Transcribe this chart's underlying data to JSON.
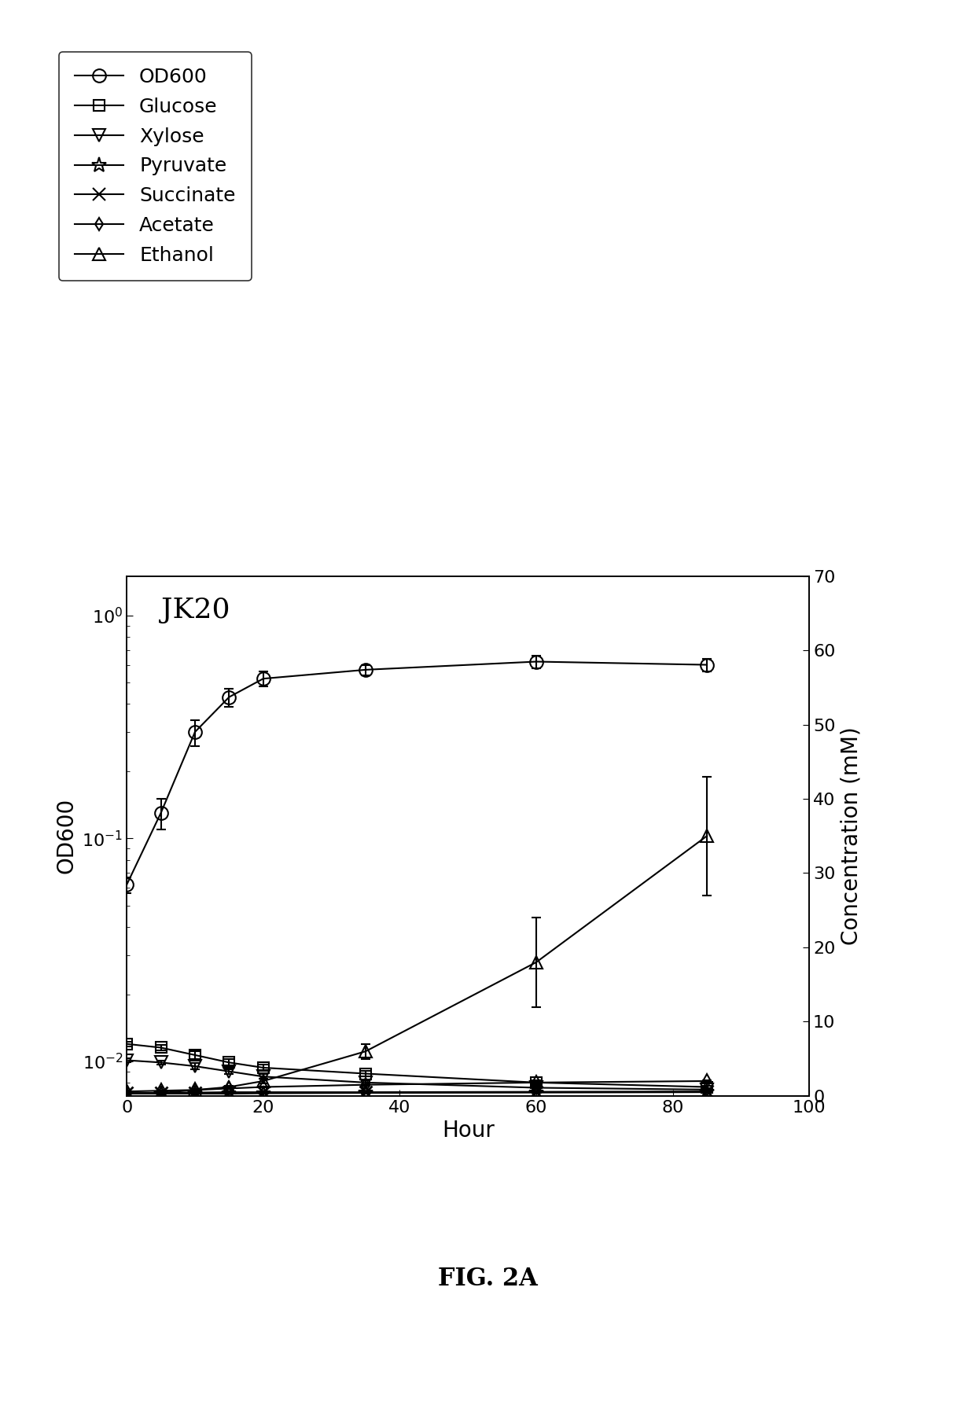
{
  "title": "JK20",
  "xlabel": "Hour",
  "ylabel_left": "OD600",
  "ylabel_right": "Concentration (mM)",
  "fig_label": "FIG. 2A",
  "xlim": [
    0,
    100
  ],
  "ylim_right": [
    0,
    70
  ],
  "right_yticks": [
    0,
    10,
    20,
    30,
    40,
    50,
    60,
    70
  ],
  "xticks": [
    0,
    20,
    40,
    60,
    80,
    100
  ],
  "OD600_x": [
    0,
    5,
    10,
    15,
    20,
    35,
    60,
    85
  ],
  "OD600_y": [
    0.062,
    0.13,
    0.3,
    0.43,
    0.52,
    0.57,
    0.62,
    0.6
  ],
  "OD600_yerr": [
    0.005,
    0.02,
    0.04,
    0.04,
    0.04,
    0.03,
    0.04,
    0.04
  ],
  "Glucose_x": [
    0,
    5,
    10,
    15,
    20,
    35,
    60,
    85
  ],
  "Glucose_y": [
    7.0,
    6.5,
    5.5,
    4.5,
    3.8,
    3.0,
    1.8,
    1.2
  ],
  "Glucose_yerr": [
    0.3,
    0.4,
    0.5,
    0.5,
    0.4,
    0.4,
    0.3,
    0.2
  ],
  "Xylose_x": [
    0,
    5,
    10,
    15,
    20,
    35,
    60,
    85
  ],
  "Xylose_y": [
    4.8,
    4.5,
    4.0,
    3.3,
    2.6,
    1.8,
    1.1,
    0.85
  ],
  "Xylose_yerr": [
    0.3,
    0.3,
    0.4,
    0.3,
    0.3,
    0.3,
    0.2,
    0.2
  ],
  "Ethanol_x": [
    0,
    5,
    10,
    15,
    20,
    35,
    60,
    85
  ],
  "Ethanol_y": [
    0.3,
    0.4,
    0.8,
    1.2,
    2.0,
    6.0,
    18.0,
    35.0
  ],
  "Ethanol_yerr": [
    0.1,
    0.1,
    0.1,
    0.2,
    0.3,
    1.0,
    6.0,
    8.0
  ],
  "Pyruvate_x": [
    0,
    5,
    10,
    15,
    20,
    35,
    60,
    85
  ],
  "Pyruvate_y": [
    0.3,
    0.3,
    0.3,
    0.3,
    0.35,
    0.4,
    0.45,
    0.5
  ],
  "Pyruvate_yerr": [
    0.05,
    0.05,
    0.05,
    0.05,
    0.05,
    0.05,
    0.05,
    0.05
  ],
  "Succinate_x": [
    0,
    5,
    10,
    15,
    20,
    35,
    60,
    85
  ],
  "Succinate_y": [
    0.4,
    0.4,
    0.45,
    0.5,
    0.5,
    0.5,
    0.55,
    0.6
  ],
  "Succinate_yerr": [
    0.05,
    0.05,
    0.05,
    0.05,
    0.05,
    0.05,
    0.05,
    0.05
  ],
  "Acetate_x": [
    0,
    5,
    10,
    15,
    20,
    35,
    60,
    85
  ],
  "Acetate_y": [
    0.6,
    0.7,
    0.8,
    1.0,
    1.2,
    1.5,
    1.8,
    2.0
  ],
  "Acetate_yerr": [
    0.05,
    0.05,
    0.05,
    0.05,
    0.08,
    0.1,
    0.1,
    0.1
  ],
  "legend_entries": [
    "OD600",
    "Glucose",
    "Xylose",
    "Pyruvate",
    "Succinate",
    "Acetate",
    "Ethanol"
  ],
  "legend_markers": [
    "o",
    "s",
    "v",
    "*",
    "x",
    "d",
    "^"
  ],
  "legend_markersizes": [
    12,
    10,
    12,
    14,
    12,
    8,
    12
  ]
}
